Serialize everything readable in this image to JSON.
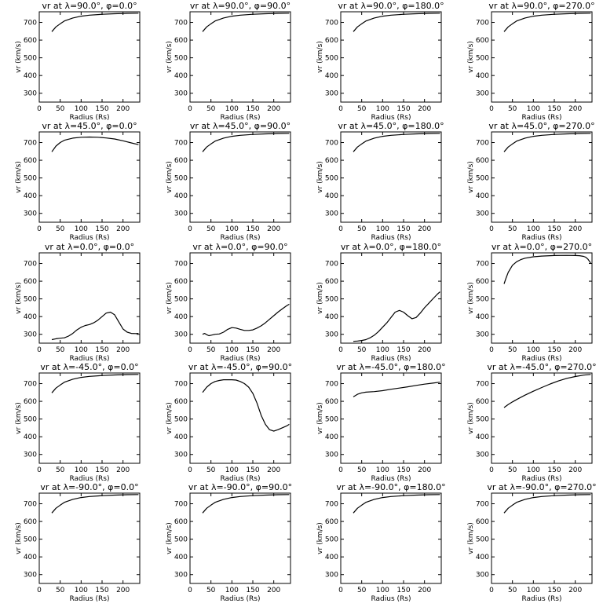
{
  "figure": {
    "xlabel": "Radius (Rs)",
    "ylabel": "vr (km/s)",
    "xticks": [
      0,
      50,
      100,
      150,
      200
    ],
    "yticks": [
      300,
      400,
      500,
      600,
      700
    ],
    "xlim": [
      0,
      240
    ],
    "ylim": [
      250,
      760
    ]
  },
  "chart_data": [
    {
      "type": "line",
      "title": "vr at λ=90.0°, φ=0.0°",
      "xlabel": "Radius (Rs)",
      "ylabel": "vr (km/s)",
      "xlim": [
        0,
        240
      ],
      "ylim": [
        250,
        760
      ],
      "series": [
        {
          "x": [
            30,
            40,
            50,
            60,
            80,
            100,
            120,
            150,
            180,
            210,
            237
          ],
          "y": [
            648,
            675,
            692,
            708,
            725,
            735,
            741,
            746,
            749,
            751,
            752
          ]
        }
      ]
    },
    {
      "type": "line",
      "title": "vr at λ=90.0°, φ=90.0°",
      "xlabel": "Radius (Rs)",
      "ylabel": "vr (km/s)",
      "xlim": [
        0,
        240
      ],
      "ylim": [
        250,
        760
      ],
      "series": [
        {
          "x": [
            30,
            40,
            50,
            60,
            80,
            100,
            120,
            150,
            180,
            210,
            237
          ],
          "y": [
            648,
            675,
            692,
            708,
            725,
            735,
            741,
            746,
            749,
            751,
            752
          ]
        }
      ]
    },
    {
      "type": "line",
      "title": "vr at λ=90.0°, φ=180.0°",
      "xlabel": "Radius (Rs)",
      "ylabel": "vr (km/s)",
      "xlim": [
        0,
        240
      ],
      "ylim": [
        250,
        760
      ],
      "series": [
        {
          "x": [
            30,
            40,
            50,
            60,
            80,
            100,
            120,
            150,
            180,
            210,
            237
          ],
          "y": [
            648,
            675,
            692,
            708,
            725,
            735,
            741,
            746,
            749,
            751,
            752
          ]
        }
      ]
    },
    {
      "type": "line",
      "title": "vr at λ=90.0°, φ=270.0°",
      "xlabel": "Radius (Rs)",
      "ylabel": "vr (km/s)",
      "xlim": [
        0,
        240
      ],
      "ylim": [
        250,
        760
      ],
      "series": [
        {
          "x": [
            30,
            40,
            50,
            60,
            80,
            100,
            120,
            150,
            180,
            210,
            237
          ],
          "y": [
            648,
            675,
            692,
            708,
            725,
            735,
            741,
            746,
            749,
            751,
            752
          ]
        }
      ]
    },
    {
      "type": "line",
      "title": "vr at λ=45.0°, φ=0.0°",
      "xlabel": "Radius (Rs)",
      "ylabel": "vr (km/s)",
      "xlim": [
        0,
        240
      ],
      "ylim": [
        250,
        760
      ],
      "series": [
        {
          "x": [
            30,
            40,
            50,
            60,
            80,
            100,
            120,
            140,
            160,
            180,
            200,
            220,
            237
          ],
          "y": [
            648,
            680,
            700,
            713,
            725,
            730,
            731,
            730,
            726,
            720,
            710,
            698,
            688
          ]
        }
      ]
    },
    {
      "type": "line",
      "title": "vr at λ=45.0°, φ=90.0°",
      "xlabel": "Radius (Rs)",
      "ylabel": "vr (km/s)",
      "xlim": [
        0,
        240
      ],
      "ylim": [
        250,
        760
      ],
      "series": [
        {
          "x": [
            30,
            40,
            50,
            60,
            80,
            100,
            120,
            150,
            180,
            210,
            237
          ],
          "y": [
            648,
            675,
            692,
            708,
            725,
            735,
            741,
            746,
            749,
            751,
            752
          ]
        }
      ]
    },
    {
      "type": "line",
      "title": "vr at λ=45.0°, φ=180.0°",
      "xlabel": "Radius (Rs)",
      "ylabel": "vr (km/s)",
      "xlim": [
        0,
        240
      ],
      "ylim": [
        250,
        760
      ],
      "series": [
        {
          "x": [
            30,
            40,
            50,
            60,
            80,
            100,
            120,
            150,
            180,
            210,
            237
          ],
          "y": [
            648,
            675,
            692,
            708,
            725,
            735,
            741,
            746,
            749,
            751,
            752
          ]
        }
      ]
    },
    {
      "type": "line",
      "title": "vr at λ=45.0°, φ=270.0°",
      "xlabel": "Radius (Rs)",
      "ylabel": "vr (km/s)",
      "xlim": [
        0,
        240
      ],
      "ylim": [
        250,
        760
      ],
      "series": [
        {
          "x": [
            30,
            40,
            50,
            60,
            80,
            100,
            120,
            150,
            180,
            210,
            237
          ],
          "y": [
            648,
            675,
            692,
            708,
            725,
            735,
            741,
            746,
            749,
            751,
            752
          ]
        }
      ]
    },
    {
      "type": "line",
      "title": "vr at λ=0.0°, φ=0.0°",
      "xlabel": "Radius (Rs)",
      "ylabel": "vr (km/s)",
      "xlim": [
        0,
        240
      ],
      "ylim": [
        250,
        760
      ],
      "series": [
        {
          "x": [
            30,
            40,
            50,
            60,
            70,
            80,
            90,
            100,
            110,
            120,
            130,
            140,
            150,
            160,
            170,
            180,
            190,
            200,
            210,
            220,
            230,
            237
          ],
          "y": [
            270,
            275,
            278,
            280,
            290,
            305,
            325,
            340,
            350,
            355,
            365,
            380,
            400,
            420,
            425,
            410,
            370,
            330,
            312,
            305,
            304,
            305
          ]
        }
      ]
    },
    {
      "type": "line",
      "title": "vr at λ=0.0°, φ=90.0°",
      "xlabel": "Radius (Rs)",
      "ylabel": "vr (km/s)",
      "xlim": [
        0,
        240
      ],
      "ylim": [
        250,
        760
      ],
      "series": [
        {
          "x": [
            30,
            35,
            40,
            45,
            50,
            60,
            70,
            80,
            90,
            100,
            110,
            120,
            130,
            140,
            150,
            160,
            170,
            180,
            190,
            200,
            210,
            220,
            230,
            237
          ],
          "y": [
            300,
            305,
            298,
            292,
            295,
            300,
            302,
            312,
            328,
            338,
            335,
            328,
            322,
            322,
            325,
            335,
            348,
            365,
            385,
            405,
            425,
            443,
            460,
            470
          ]
        }
      ]
    },
    {
      "type": "line",
      "title": "vr at λ=0.0°, φ=180.0°",
      "xlabel": "Radius (Rs)",
      "ylabel": "vr (km/s)",
      "xlim": [
        0,
        240
      ],
      "ylim": [
        250,
        760
      ],
      "series": [
        {
          "x": [
            30,
            40,
            50,
            60,
            70,
            80,
            90,
            100,
            110,
            120,
            130,
            140,
            150,
            160,
            170,
            180,
            190,
            200,
            210,
            220,
            230,
            237
          ],
          "y": [
            260,
            262,
            265,
            270,
            280,
            295,
            315,
            340,
            365,
            395,
            425,
            435,
            425,
            405,
            388,
            395,
            420,
            450,
            475,
            500,
            525,
            540
          ]
        }
      ]
    },
    {
      "type": "line",
      "title": "vr at λ=0.0°, φ=270.0°",
      "xlabel": "Radius (Rs)",
      "ylabel": "vr (km/s)",
      "xlim": [
        0,
        240
      ],
      "ylim": [
        250,
        760
      ],
      "series": [
        {
          "x": [
            30,
            35,
            40,
            50,
            60,
            70,
            80,
            100,
            120,
            150,
            180,
            200,
            210,
            220,
            225,
            230,
            234,
            237
          ],
          "y": [
            585,
            620,
            650,
            690,
            710,
            722,
            730,
            738,
            742,
            745,
            746,
            745,
            744,
            740,
            735,
            725,
            712,
            700
          ]
        }
      ]
    },
    {
      "type": "line",
      "title": "vr at λ=-45.0°, φ=0.0°",
      "xlabel": "Radius (Rs)",
      "ylabel": "vr (km/s)",
      "xlim": [
        0,
        240
      ],
      "ylim": [
        250,
        760
      ],
      "series": [
        {
          "x": [
            30,
            40,
            50,
            60,
            80,
            100,
            120,
            150,
            180,
            210,
            237
          ],
          "y": [
            648,
            675,
            692,
            708,
            725,
            735,
            741,
            746,
            749,
            751,
            752
          ]
        }
      ]
    },
    {
      "type": "line",
      "title": "vr at λ=-45.0°, φ=90.0°",
      "xlabel": "Radius (Rs)",
      "ylabel": "vr (km/s)",
      "xlim": [
        0,
        240
      ],
      "ylim": [
        250,
        760
      ],
      "series": [
        {
          "x": [
            30,
            40,
            50,
            60,
            70,
            80,
            90,
            100,
            110,
            120,
            130,
            140,
            150,
            160,
            170,
            180,
            190,
            200,
            210,
            220,
            230,
            237
          ],
          "y": [
            650,
            680,
            700,
            712,
            718,
            722,
            722,
            722,
            720,
            712,
            700,
            680,
            645,
            590,
            520,
            470,
            440,
            432,
            440,
            450,
            460,
            470
          ]
        }
      ]
    },
    {
      "type": "line",
      "title": "vr at λ=-45.0°, φ=180.0°",
      "xlabel": "Radius (Rs)",
      "ylabel": "vr (km/s)",
      "xlim": [
        0,
        240
      ],
      "ylim": [
        250,
        760
      ],
      "series": [
        {
          "x": [
            30,
            40,
            50,
            60,
            80,
            100,
            120,
            140,
            160,
            180,
            200,
            220,
            237
          ],
          "y": [
            625,
            640,
            648,
            652,
            655,
            660,
            668,
            675,
            682,
            690,
            697,
            703,
            708
          ]
        }
      ]
    },
    {
      "type": "line",
      "title": "vr at λ=-45.0°, φ=270.0°",
      "xlabel": "Radius (Rs)",
      "ylabel": "vr (km/s)",
      "xlim": [
        0,
        240
      ],
      "ylim": [
        250,
        760
      ],
      "series": [
        {
          "x": [
            30,
            40,
            50,
            60,
            80,
            100,
            120,
            140,
            160,
            180,
            200,
            220,
            237
          ],
          "y": [
            565,
            582,
            597,
            610,
            635,
            657,
            678,
            698,
            715,
            730,
            740,
            748,
            752
          ]
        }
      ]
    },
    {
      "type": "line",
      "title": "vr at λ=-90.0°, φ=0.0°",
      "xlabel": "Radius (Rs)",
      "ylabel": "vr (km/s)",
      "xlim": [
        0,
        240
      ],
      "ylim": [
        250,
        760
      ],
      "series": [
        {
          "x": [
            30,
            40,
            50,
            60,
            80,
            100,
            120,
            150,
            180,
            210,
            237
          ],
          "y": [
            648,
            675,
            692,
            708,
            725,
            735,
            741,
            746,
            749,
            751,
            752
          ]
        }
      ]
    },
    {
      "type": "line",
      "title": "vr at λ=-90.0°, φ=90.0°",
      "xlabel": "Radius (Rs)",
      "ylabel": "vr (km/s)",
      "xlim": [
        0,
        240
      ],
      "ylim": [
        250,
        760
      ],
      "series": [
        {
          "x": [
            30,
            40,
            50,
            60,
            80,
            100,
            120,
            150,
            180,
            210,
            237
          ],
          "y": [
            648,
            675,
            692,
            708,
            725,
            735,
            741,
            746,
            749,
            751,
            752
          ]
        }
      ]
    },
    {
      "type": "line",
      "title": "vr at λ=-90.0°, φ=180.0°",
      "xlabel": "Radius (Rs)",
      "ylabel": "vr (km/s)",
      "xlim": [
        0,
        240
      ],
      "ylim": [
        250,
        760
      ],
      "series": [
        {
          "x": [
            30,
            40,
            50,
            60,
            80,
            100,
            120,
            150,
            180,
            210,
            237
          ],
          "y": [
            648,
            675,
            692,
            708,
            725,
            735,
            741,
            746,
            749,
            751,
            752
          ]
        }
      ]
    },
    {
      "type": "line",
      "title": "vr at λ=-90.0°, φ=270.0°",
      "xlabel": "Radius (Rs)",
      "ylabel": "vr (km/s)",
      "xlim": [
        0,
        240
      ],
      "ylim": [
        250,
        760
      ],
      "series": [
        {
          "x": [
            30,
            40,
            50,
            60,
            80,
            100,
            120,
            150,
            180,
            210,
            237
          ],
          "y": [
            648,
            675,
            692,
            708,
            725,
            735,
            741,
            746,
            749,
            751,
            752
          ]
        }
      ]
    }
  ]
}
